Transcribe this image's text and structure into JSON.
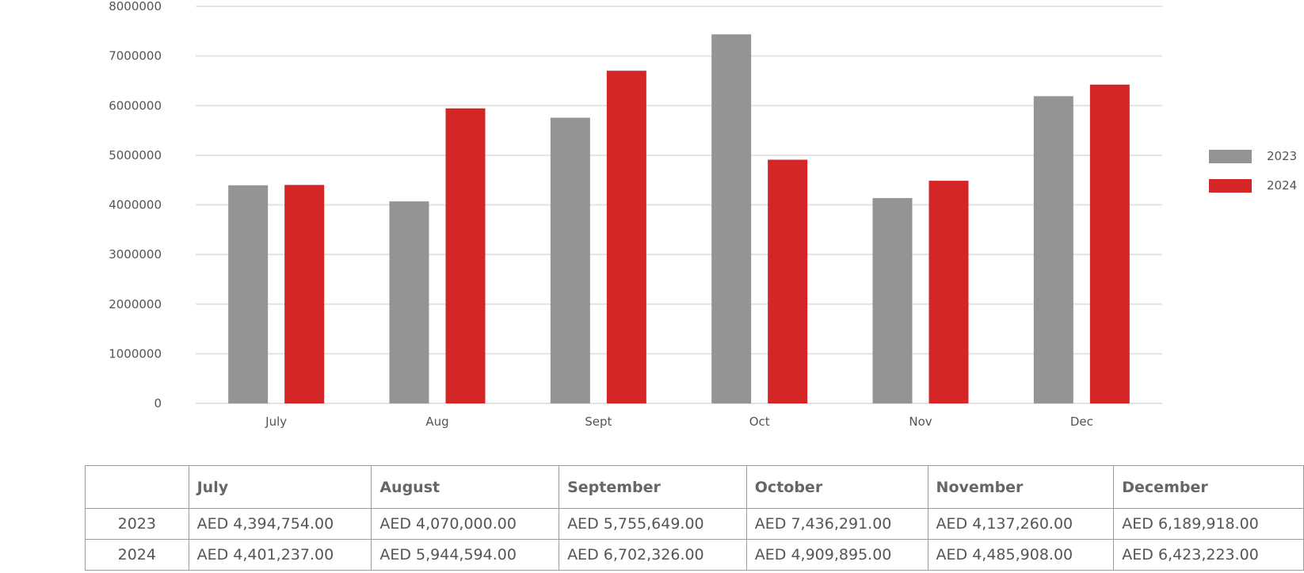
{
  "chart_data": {
    "type": "bar",
    "categories": [
      "July",
      "Aug",
      "Sept",
      "Oct",
      "Nov",
      "Dec"
    ],
    "series": [
      {
        "name": "2023",
        "color": "#949494",
        "values": [
          4394754,
          4070000,
          5755649,
          7436291,
          4137260,
          6189918
        ]
      },
      {
        "name": "2024",
        "color": "#d42626",
        "values": [
          4401237,
          5944594,
          6702326,
          4909895,
          4485908,
          6423223
        ]
      }
    ],
    "ylim": [
      0,
      8000000
    ],
    "yticks": [
      "0",
      "1000000",
      "2000000",
      "3000000",
      "4000000",
      "5000000",
      "6000000",
      "7000000",
      "8000000"
    ],
    "grid": true,
    "legend_position": "right"
  },
  "legend": [
    {
      "label": "2023",
      "color": "#949494"
    },
    {
      "label": "2024",
      "color": "#d42626"
    }
  ],
  "table": {
    "headers": [
      "",
      "July",
      "August",
      "September",
      "October",
      "November",
      "December"
    ],
    "rows": [
      {
        "year": "2023",
        "cells": [
          "AED 4,394,754.00",
          "AED 4,070,000.00",
          "AED 5,755,649.00",
          "AED 7,436,291.00",
          "AED 4,137,260.00",
          "AED 6,189,918.00"
        ]
      },
      {
        "year": "2024",
        "cells": [
          "AED 4,401,237.00",
          "AED 5,944,594.00",
          "AED 6,702,326.00",
          "AED 4,909,895.00",
          "AED 4,485,908.00",
          "AED 6,423,223.00"
        ]
      }
    ]
  }
}
